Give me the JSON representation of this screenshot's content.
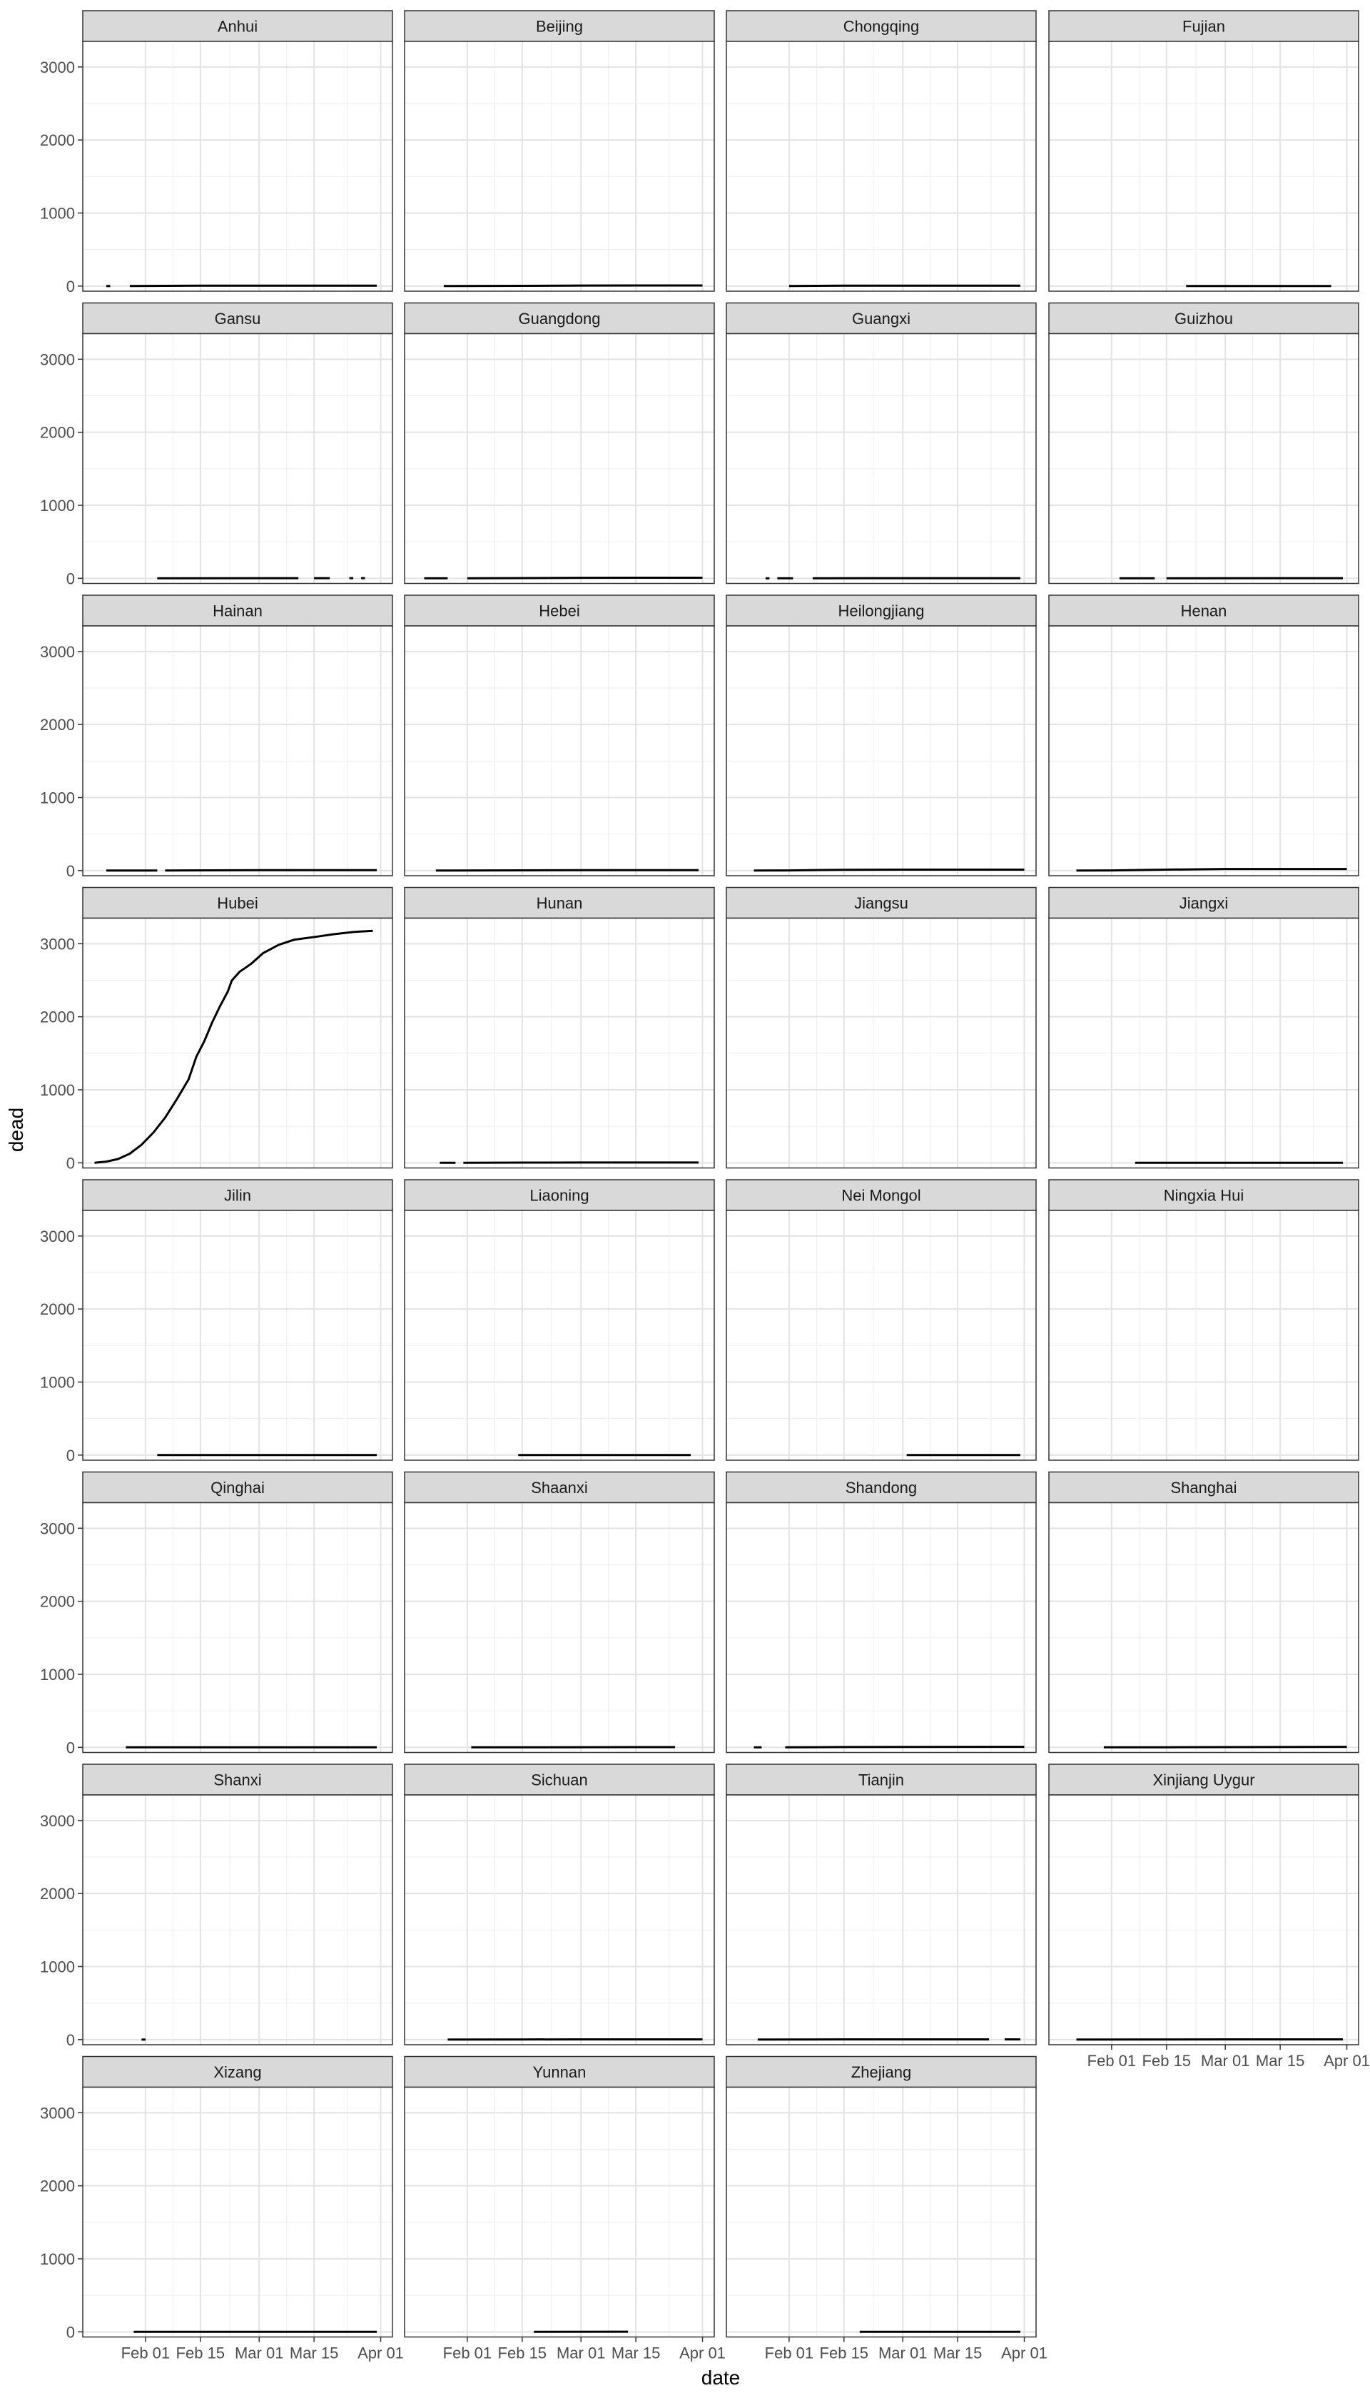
{
  "chart_data": {
    "type": "line",
    "facet_layout": {
      "ncol": 4,
      "nrow": 8
    },
    "xlabel": "date",
    "ylabel": "dead",
    "xlim": [
      "2020-01-16",
      "2020-04-04"
    ],
    "ylim": [
      -70,
      3350
    ],
    "x_ticks": [
      "2020-02-01",
      "2020-02-15",
      "2020-03-01",
      "2020-03-15",
      "2020-04-01"
    ],
    "x_tick_labels": [
      "Feb 01",
      "Feb 15",
      "Mar 01",
      "Mar 15",
      "Apr 01"
    ],
    "y_ticks": [
      0,
      1000,
      2000,
      3000
    ],
    "y_tick_labels": [
      "0",
      "1000",
      "2000",
      "3000"
    ],
    "theme": {
      "grid": true,
      "background": "white",
      "strip_fill": "#d9d9d9",
      "line_color": "#000000"
    },
    "series": [
      {
        "name": "Anhui",
        "segments": [
          [
            [
              "2020-01-22",
              0
            ],
            [
              "2020-01-23",
              0
            ]
          ],
          [
            [
              "2020-01-28",
              0
            ],
            [
              "2020-02-15",
              5
            ],
            [
              "2020-03-01",
              6
            ],
            [
              "2020-03-31",
              6
            ]
          ]
        ]
      },
      {
        "name": "Beijing",
        "segments": [
          [
            [
              "2020-01-26",
              0
            ],
            [
              "2020-02-15",
              3
            ],
            [
              "2020-03-01",
              7
            ],
            [
              "2020-04-01",
              8
            ]
          ]
        ]
      },
      {
        "name": "Chongqing",
        "segments": [
          [
            [
              "2020-02-01",
              0
            ],
            [
              "2020-02-15",
              5
            ],
            [
              "2020-03-01",
              6
            ],
            [
              "2020-03-31",
              6
            ]
          ]
        ]
      },
      {
        "name": "Fujian",
        "segments": [
          [
            [
              "2020-02-20",
              0
            ],
            [
              "2020-03-28",
              1
            ]
          ]
        ]
      },
      {
        "name": "Gansu",
        "segments": [
          [
            [
              "2020-02-04",
              0
            ],
            [
              "2020-03-11",
              2
            ]
          ],
          [
            [
              "2020-03-15",
              2
            ],
            [
              "2020-03-19",
              2
            ]
          ],
          [
            [
              "2020-03-24",
              2
            ],
            [
              "2020-03-25",
              2
            ]
          ],
          [
            [
              "2020-03-27",
              2
            ],
            [
              "2020-03-28",
              2
            ]
          ]
        ]
      },
      {
        "name": "Guangdong",
        "segments": [
          [
            [
              "2020-01-21",
              0
            ],
            [
              "2020-01-27",
              0
            ]
          ],
          [
            [
              "2020-02-01",
              0
            ],
            [
              "2020-02-15",
              3
            ],
            [
              "2020-03-01",
              7
            ],
            [
              "2020-04-01",
              8
            ]
          ]
        ]
      },
      {
        "name": "Guangxi",
        "segments": [
          [
            [
              "2020-01-26",
              0
            ],
            [
              "2020-01-27",
              0
            ]
          ],
          [
            [
              "2020-01-29",
              0
            ],
            [
              "2020-02-02",
              0
            ]
          ],
          [
            [
              "2020-02-07",
              0
            ],
            [
              "2020-02-20",
              2
            ],
            [
              "2020-03-31",
              2
            ]
          ]
        ]
      },
      {
        "name": "Guizhou",
        "segments": [
          [
            [
              "2020-02-03",
              0
            ],
            [
              "2020-02-12",
              1
            ]
          ],
          [
            [
              "2020-02-15",
              1
            ],
            [
              "2020-03-31",
              2
            ]
          ]
        ]
      },
      {
        "name": "Hainan",
        "segments": [
          [
            [
              "2020-01-22",
              0
            ],
            [
              "2020-02-04",
              1
            ]
          ],
          [
            [
              "2020-02-06",
              1
            ],
            [
              "2020-03-01",
              6
            ],
            [
              "2020-03-31",
              6
            ]
          ]
        ]
      },
      {
        "name": "Hebei",
        "segments": [
          [
            [
              "2020-01-24",
              0
            ],
            [
              "2020-02-15",
              3
            ],
            [
              "2020-03-01",
              6
            ],
            [
              "2020-03-31",
              6
            ]
          ]
        ]
      },
      {
        "name": "Heilongjiang",
        "segments": [
          [
            [
              "2020-01-23",
              0
            ],
            [
              "2020-02-01",
              2
            ],
            [
              "2020-02-15",
              11
            ],
            [
              "2020-03-01",
              13
            ],
            [
              "2020-04-01",
              13
            ]
          ]
        ]
      },
      {
        "name": "Henan",
        "segments": [
          [
            [
              "2020-01-23",
              0
            ],
            [
              "2020-02-01",
              2
            ],
            [
              "2020-02-15",
              13
            ],
            [
              "2020-03-01",
              22
            ],
            [
              "2020-04-01",
              22
            ]
          ]
        ]
      },
      {
        "name": "Hubei",
        "segments": [
          [
            [
              "2020-01-19",
              0
            ],
            [
              "2020-01-22",
              17
            ],
            [
              "2020-01-25",
              52
            ],
            [
              "2020-01-28",
              125
            ],
            [
              "2020-01-31",
              249
            ],
            [
              "2020-02-03",
              414
            ],
            [
              "2020-02-06",
              618
            ],
            [
              "2020-02-09",
              871
            ],
            [
              "2020-02-12",
              1143
            ],
            [
              "2020-02-14",
              1456
            ],
            [
              "2020-02-16",
              1665
            ],
            [
              "2020-02-18",
              1921
            ],
            [
              "2020-02-20",
              2144
            ],
            [
              "2020-02-22",
              2346
            ],
            [
              "2020-02-23",
              2495
            ],
            [
              "2020-02-25",
              2615
            ],
            [
              "2020-02-28",
              2727
            ],
            [
              "2020-03-02",
              2871
            ],
            [
              "2020-03-06",
              2986
            ],
            [
              "2020-03-10",
              3056
            ],
            [
              "2020-03-16",
              3099
            ],
            [
              "2020-03-20",
              3130
            ],
            [
              "2020-03-25",
              3160
            ],
            [
              "2020-03-30",
              3177
            ]
          ]
        ]
      },
      {
        "name": "Hunan",
        "segments": [
          [
            [
              "2020-01-25",
              0
            ],
            [
              "2020-01-29",
              0
            ]
          ],
          [
            [
              "2020-01-31",
              0
            ],
            [
              "2020-02-15",
              3
            ],
            [
              "2020-03-01",
              4
            ],
            [
              "2020-03-31",
              4
            ]
          ]
        ]
      },
      {
        "name": "Jiangsu",
        "segments": []
      },
      {
        "name": "Jiangxi",
        "segments": [
          [
            [
              "2020-02-07",
              0
            ],
            [
              "2020-03-31",
              1
            ]
          ]
        ]
      },
      {
        "name": "Jilin",
        "segments": [
          [
            [
              "2020-02-04",
              0
            ],
            [
              "2020-03-31",
              1
            ]
          ]
        ]
      },
      {
        "name": "Liaoning",
        "segments": [
          [
            [
              "2020-02-14",
              0
            ],
            [
              "2020-03-29",
              1
            ]
          ]
        ]
      },
      {
        "name": "Nei Mongol",
        "segments": [
          [
            [
              "2020-03-02",
              0
            ],
            [
              "2020-03-31",
              1
            ]
          ]
        ]
      },
      {
        "name": "Ningxia Hui",
        "segments": []
      },
      {
        "name": "Qinghai",
        "segments": [
          [
            [
              "2020-01-27",
              0
            ],
            [
              "2020-03-31",
              0
            ]
          ]
        ]
      },
      {
        "name": "Shaanxi",
        "segments": [
          [
            [
              "2020-02-02",
              0
            ],
            [
              "2020-03-25",
              3
            ]
          ]
        ]
      },
      {
        "name": "Shandong",
        "segments": [
          [
            [
              "2020-01-23",
              0
            ],
            [
              "2020-01-25",
              0
            ]
          ],
          [
            [
              "2020-01-31",
              0
            ],
            [
              "2020-02-15",
              4
            ],
            [
              "2020-03-01",
              6
            ],
            [
              "2020-04-01",
              7
            ]
          ]
        ]
      },
      {
        "name": "Shanghai",
        "segments": [
          [
            [
              "2020-01-30",
              0
            ],
            [
              "2020-02-15",
              1
            ],
            [
              "2020-03-01",
              3
            ],
            [
              "2020-04-01",
              7
            ]
          ]
        ]
      },
      {
        "name": "Shanxi",
        "segments": [
          [
            [
              "2020-01-31",
              0
            ],
            [
              "2020-02-01",
              0
            ]
          ]
        ]
      },
      {
        "name": "Sichuan",
        "segments": [
          [
            [
              "2020-01-27",
              0
            ],
            [
              "2020-02-15",
              2
            ],
            [
              "2020-03-01",
              3
            ],
            [
              "2020-04-01",
              3
            ]
          ]
        ]
      },
      {
        "name": "Tianjin",
        "segments": [
          [
            [
              "2020-01-24",
              0
            ],
            [
              "2020-02-15",
              3
            ],
            [
              "2020-03-23",
              3
            ]
          ],
          [
            [
              "2020-03-27",
              3
            ],
            [
              "2020-03-31",
              3
            ]
          ]
        ]
      },
      {
        "name": "Xinjiang Uygur",
        "segments": [
          [
            [
              "2020-01-23",
              0
            ],
            [
              "2020-02-15",
              2
            ],
            [
              "2020-03-01",
              3
            ],
            [
              "2020-03-31",
              3
            ]
          ]
        ]
      },
      {
        "name": "Xizang",
        "segments": [
          [
            [
              "2020-01-29",
              0
            ],
            [
              "2020-03-31",
              0
            ]
          ]
        ]
      },
      {
        "name": "Yunnan",
        "segments": [
          [
            [
              "2020-02-18",
              0
            ],
            [
              "2020-03-13",
              2
            ]
          ]
        ]
      },
      {
        "name": "Zhejiang",
        "segments": [
          [
            [
              "2020-02-19",
              0
            ],
            [
              "2020-03-31",
              1
            ]
          ]
        ]
      }
    ]
  }
}
